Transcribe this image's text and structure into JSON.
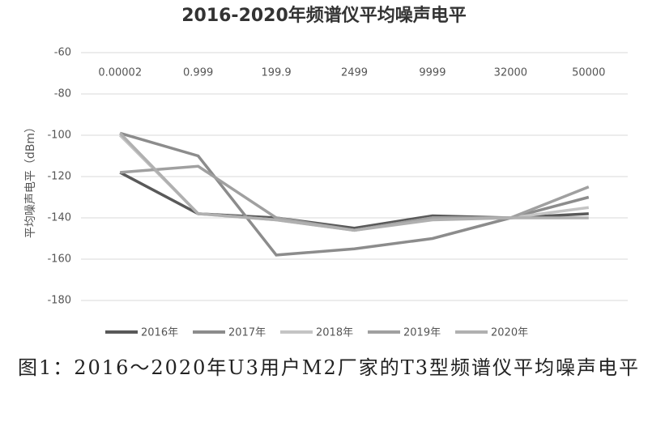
{
  "chart_data": {
    "type": "line",
    "title": "2016-2020年频谱仪平均噪声电平",
    "y_label": "平均噪声电平（dBm）",
    "categories": [
      "0.00002",
      "0.999",
      "199.9",
      "2499",
      "9999",
      "32000",
      "50000"
    ],
    "series": [
      {
        "name": "2016年",
        "color": "#595959",
        "values": [
          -118,
          -138,
          -140,
          -145,
          -139,
          -140,
          -138
        ]
      },
      {
        "name": "2017年",
        "color": "#8c8c8c",
        "values": [
          -99,
          -110,
          -158,
          -155,
          -150,
          -140,
          -130
        ]
      },
      {
        "name": "2018年",
        "color": "#c4c4c4",
        "values": [
          -100,
          -138,
          -141,
          -146,
          -140,
          -140,
          -135
        ]
      },
      {
        "name": "2019年",
        "color": "#a0a0a0",
        "values": [
          -118,
          -115,
          -140,
          -146,
          -140,
          -140,
          -125
        ]
      },
      {
        "name": "2020年",
        "color": "#b0b0b0",
        "values": [
          -99,
          -138,
          -141,
          -146,
          -141,
          -140,
          -140
        ]
      }
    ],
    "ylim": [
      -180,
      -60
    ],
    "yticks": [
      -60,
      -80,
      -100,
      -120,
      -140,
      -160,
      -180
    ],
    "grid": true
  },
  "caption": "图1：2016～2020年U3用户M2厂家的T3型频谱仪平均噪声电平"
}
